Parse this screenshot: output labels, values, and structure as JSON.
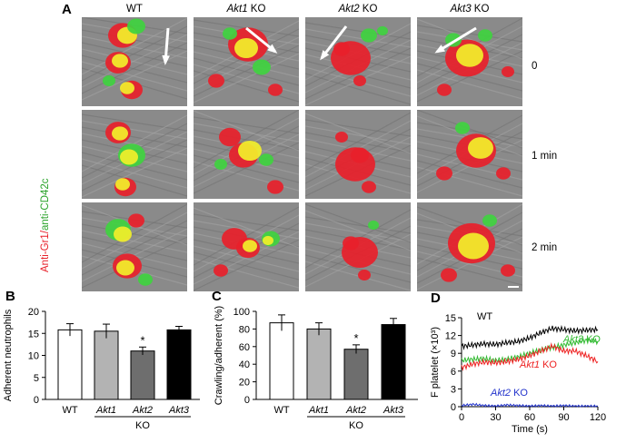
{
  "panel_labels": {
    "a": "A",
    "b": "B",
    "c": "C",
    "d": "D"
  },
  "panel_a": {
    "columns": [
      {
        "label": "WT",
        "italic": "",
        "rest": "WT"
      },
      {
        "label": "Akt1 KO",
        "italic": "Akt1",
        "rest": " KO"
      },
      {
        "label": "Akt2 KO",
        "italic": "Akt2",
        "rest": " KO"
      },
      {
        "label": "Akt3 KO",
        "italic": "Akt3",
        "rest": " KO"
      }
    ],
    "rows": [
      "0",
      "1 min",
      "2 min"
    ],
    "side_label": {
      "red_part": "Anti-Gr1/",
      "green_part": "anti-CD42c"
    },
    "colors": {
      "red": "#e8202a",
      "green": "#3fd23f",
      "yellow": "#f2ef2a",
      "background": "#8a8a8a"
    }
  },
  "chart_data": [
    {
      "panel": "B",
      "type": "bar",
      "title": "",
      "ylabel": "Adherent neutrophils",
      "xlabel": "KO",
      "categories": [
        "WT",
        "Akt1",
        "Akt2",
        "Akt3"
      ],
      "values": [
        15.8,
        15.5,
        11.0,
        15.8
      ],
      "errors": [
        1.4,
        1.6,
        0.9,
        0.8
      ],
      "bar_colors": [
        "#ffffff",
        "#b3b3b3",
        "#6e6e6e",
        "#000000"
      ],
      "significance": [
        "",
        "",
        "*",
        ""
      ],
      "ylim": [
        0,
        20
      ],
      "yticks": [
        0,
        5,
        10,
        15,
        20
      ]
    },
    {
      "panel": "C",
      "type": "bar",
      "title": "",
      "ylabel": "Crawling/adherent (%)",
      "xlabel": "KO",
      "categories": [
        "WT",
        "Akt1",
        "Akt2",
        "Akt3"
      ],
      "values": [
        87,
        80,
        57,
        85
      ],
      "errors": [
        9,
        7,
        5,
        7
      ],
      "bar_colors": [
        "#ffffff",
        "#b3b3b3",
        "#6e6e6e",
        "#000000"
      ],
      "significance": [
        "",
        "",
        "*",
        ""
      ],
      "ylim": [
        0,
        100
      ],
      "yticks": [
        0,
        20,
        40,
        60,
        80,
        100
      ]
    },
    {
      "panel": "D",
      "type": "line",
      "title": "",
      "xlabel": "Time (s)",
      "ylabel": "F platelet (×10³)",
      "xlim": [
        0,
        120
      ],
      "ylim": [
        0,
        15
      ],
      "xticks": [
        0,
        30,
        60,
        90,
        120
      ],
      "yticks": [
        0,
        3,
        6,
        9,
        12,
        15
      ],
      "series": [
        {
          "name": "WT",
          "color": "#000000",
          "x": [
            0,
            10,
            20,
            30,
            40,
            50,
            60,
            70,
            80,
            90,
            100,
            110,
            120
          ],
          "y": [
            10.2,
            10.4,
            10.6,
            10.5,
            10.8,
            11.0,
            11.6,
            12.5,
            13.2,
            13.0,
            12.8,
            12.9,
            13.0
          ]
        },
        {
          "name": "Akt3 KO",
          "color": "#33bb33",
          "x": [
            0,
            10,
            20,
            30,
            40,
            50,
            60,
            70,
            80,
            90,
            100,
            110,
            120
          ],
          "y": [
            7.8,
            8.0,
            8.1,
            7.8,
            8.0,
            8.4,
            9.0,
            9.6,
            10.0,
            10.4,
            10.8,
            11.2,
            11.0
          ]
        },
        {
          "name": "Akt1 KO",
          "color": "#ee2222",
          "x": [
            0,
            10,
            20,
            30,
            40,
            50,
            60,
            70,
            80,
            90,
            100,
            110,
            120
          ],
          "y": [
            6.6,
            7.2,
            7.5,
            7.4,
            7.6,
            8.0,
            8.6,
            9.4,
            10.2,
            9.4,
            9.4,
            8.6,
            7.6
          ]
        },
        {
          "name": "Akt2 KO",
          "color": "#2233cc",
          "x": [
            0,
            10,
            20,
            30,
            40,
            50,
            60,
            70,
            80,
            90,
            100,
            110,
            120
          ],
          "y": [
            0.2,
            0.4,
            0.2,
            0.1,
            0.3,
            0.2,
            0.1,
            0.2,
            0.1,
            0.2,
            0.1,
            0.1,
            0.1
          ]
        }
      ]
    }
  ]
}
